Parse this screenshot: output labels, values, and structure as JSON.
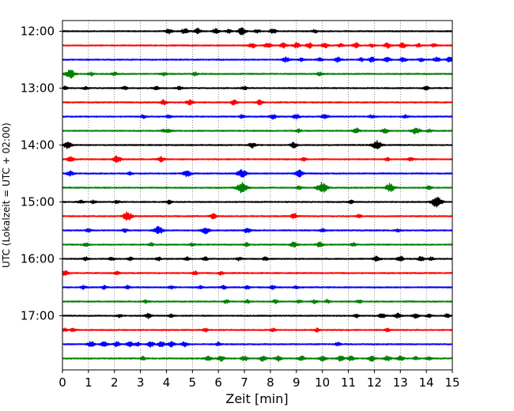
{
  "chart_data": {
    "type": "line",
    "title": "",
    "xlabel": "Zeit  [min]",
    "ylabel": "UTC (Lokalzeit = UTC + 02:00)",
    "xlim": [
      0,
      15
    ],
    "x_ticks": [
      "0",
      "1",
      "2",
      "3",
      "4",
      "5",
      "6",
      "7",
      "8",
      "9",
      "10",
      "11",
      "12",
      "13",
      "14",
      "15"
    ],
    "y_tick_labels": [
      "12:00",
      "13:00",
      "14:00",
      "15:00",
      "16:00",
      "17:00"
    ],
    "grid": "vertical-dotted",
    "colors": [
      "#000000",
      "#ff0000",
      "#0000ff",
      "#008000"
    ],
    "series": [
      {
        "time": "12:00",
        "color": "#000000",
        "events": [
          [
            4.1,
            3
          ],
          [
            4.7,
            3
          ],
          [
            5.2,
            3
          ],
          [
            5.9,
            3
          ],
          [
            6.4,
            2
          ],
          [
            6.9,
            4
          ],
          [
            7.5,
            2
          ],
          [
            8.1,
            3
          ],
          [
            9.7,
            2
          ]
        ]
      },
      {
        "time": "12:15",
        "color": "#ff0000",
        "events": [
          [
            7.3,
            3
          ],
          [
            7.9,
            3
          ],
          [
            8.5,
            3
          ],
          [
            9.0,
            3
          ],
          [
            9.5,
            3
          ],
          [
            10.1,
            3
          ],
          [
            10.7,
            2
          ],
          [
            11.3,
            3
          ],
          [
            11.9,
            2
          ],
          [
            12.5,
            3
          ],
          [
            13.1,
            3
          ],
          [
            13.7,
            2
          ],
          [
            14.3,
            2
          ]
        ]
      },
      {
        "time": "12:30",
        "color": "#0000ff",
        "events": [
          [
            8.6,
            3
          ],
          [
            9.2,
            2
          ],
          [
            9.9,
            2
          ],
          [
            10.6,
            3
          ],
          [
            11.5,
            2
          ],
          [
            11.9,
            3
          ],
          [
            12.5,
            3
          ],
          [
            13.1,
            3
          ],
          [
            13.8,
            2
          ],
          [
            14.4,
            3
          ],
          [
            14.9,
            3
          ]
        ]
      },
      {
        "time": "12:45",
        "color": "#008000",
        "events": [
          [
            0.3,
            5
          ],
          [
            1.1,
            2
          ],
          [
            2.0,
            2
          ],
          [
            3.9,
            2
          ],
          [
            5.1,
            2
          ],
          [
            9.9,
            2
          ]
        ]
      },
      {
        "time": "13:00",
        "color": "#000000",
        "events": [
          [
            0.1,
            2
          ],
          [
            0.9,
            2
          ],
          [
            2.4,
            2
          ],
          [
            3.6,
            2
          ],
          [
            4.5,
            2
          ],
          [
            7.0,
            2
          ],
          [
            14.0,
            2
          ]
        ]
      },
      {
        "time": "13:15",
        "color": "#ff0000",
        "events": [
          [
            3.9,
            3
          ],
          [
            4.9,
            3
          ],
          [
            6.6,
            3
          ],
          [
            7.6,
            3
          ]
        ]
      },
      {
        "time": "13:30",
        "color": "#0000ff",
        "events": [
          [
            3.1,
            2
          ],
          [
            4.1,
            2
          ],
          [
            6.9,
            2
          ],
          [
            8.1,
            3
          ],
          [
            9.0,
            3
          ],
          [
            10.1,
            3
          ],
          [
            11.9,
            2
          ],
          [
            13.2,
            2
          ]
        ]
      },
      {
        "time": "13:45",
        "color": "#008000",
        "events": [
          [
            3.9,
            2
          ],
          [
            4.1,
            2
          ],
          [
            9.1,
            2
          ],
          [
            11.3,
            3
          ],
          [
            12.4,
            3
          ],
          [
            13.6,
            4
          ],
          [
            14.1,
            2
          ]
        ]
      },
      {
        "time": "14:00",
        "color": "#000000",
        "events": [
          [
            0.2,
            4
          ],
          [
            7.3,
            3
          ],
          [
            8.9,
            3
          ],
          [
            12.1,
            5
          ]
        ]
      },
      {
        "time": "14:15",
        "color": "#ff0000",
        "events": [
          [
            0.3,
            3
          ],
          [
            2.1,
            4
          ],
          [
            3.8,
            3
          ],
          [
            9.3,
            2
          ],
          [
            12.5,
            2
          ],
          [
            13.4,
            2
          ]
        ]
      },
      {
        "time": "14:30",
        "color": "#0000ff",
        "events": [
          [
            0.3,
            3
          ],
          [
            2.6,
            2
          ],
          [
            4.8,
            4
          ],
          [
            6.9,
            5
          ],
          [
            9.1,
            4
          ]
        ]
      },
      {
        "time": "14:45",
        "color": "#008000",
        "events": [
          [
            6.9,
            6
          ],
          [
            9.1,
            2
          ],
          [
            10.0,
            6
          ],
          [
            12.6,
            5
          ],
          [
            14.1,
            2
          ]
        ]
      },
      {
        "time": "15:00",
        "color": "#000000",
        "events": [
          [
            0.7,
            2
          ],
          [
            1.2,
            2
          ],
          [
            2.1,
            2
          ],
          [
            4.1,
            2
          ],
          [
            11.1,
            2
          ],
          [
            14.4,
            6
          ]
        ]
      },
      {
        "time": "15:15",
        "color": "#ff0000",
        "events": [
          [
            2.5,
            5
          ],
          [
            5.8,
            3
          ],
          [
            8.9,
            3
          ],
          [
            11.4,
            2
          ]
        ]
      },
      {
        "time": "15:30",
        "color": "#0000ff",
        "events": [
          [
            1.0,
            2
          ],
          [
            2.4,
            2
          ],
          [
            3.7,
            5
          ],
          [
            5.5,
            4
          ],
          [
            7.1,
            3
          ],
          [
            10.0,
            2
          ],
          [
            12.9,
            2
          ]
        ]
      },
      {
        "time": "15:45",
        "color": "#008000",
        "events": [
          [
            0.9,
            2
          ],
          [
            3.4,
            2
          ],
          [
            5.0,
            2
          ],
          [
            7.1,
            2
          ],
          [
            8.9,
            3
          ],
          [
            9.9,
            3
          ],
          [
            11.2,
            2
          ]
        ]
      },
      {
        "time": "16:00",
        "color": "#000000",
        "events": [
          [
            0.9,
            2
          ],
          [
            1.9,
            2
          ],
          [
            2.6,
            2
          ],
          [
            3.7,
            2
          ],
          [
            4.8,
            2
          ],
          [
            5.5,
            2
          ],
          [
            6.8,
            2
          ],
          [
            7.8,
            2
          ],
          [
            12.1,
            3
          ],
          [
            13.0,
            3
          ],
          [
            13.8,
            3
          ],
          [
            14.2,
            2
          ]
        ]
      },
      {
        "time": "16:15",
        "color": "#ff0000",
        "events": [
          [
            0.1,
            3
          ],
          [
            2.1,
            2
          ],
          [
            5.1,
            2
          ],
          [
            6.1,
            2
          ]
        ]
      },
      {
        "time": "16:30",
        "color": "#0000ff",
        "events": [
          [
            0.8,
            2
          ],
          [
            1.6,
            2
          ],
          [
            2.5,
            2
          ],
          [
            4.2,
            2
          ],
          [
            5.3,
            2
          ],
          [
            6.2,
            2
          ],
          [
            7.1,
            2
          ],
          [
            8.1,
            2
          ],
          [
            9.0,
            2
          ]
        ]
      },
      {
        "time": "16:45",
        "color": "#008000",
        "events": [
          [
            3.2,
            2
          ],
          [
            6.3,
            2
          ],
          [
            7.1,
            2
          ],
          [
            8.2,
            2
          ],
          [
            9.1,
            2
          ],
          [
            9.7,
            2
          ],
          [
            10.2,
            2
          ],
          [
            11.4,
            2
          ]
        ]
      },
      {
        "time": "17:00",
        "color": "#000000",
        "events": [
          [
            2.2,
            2
          ],
          [
            3.3,
            3
          ],
          [
            4.2,
            2
          ],
          [
            11.3,
            2
          ],
          [
            12.3,
            3
          ],
          [
            12.9,
            3
          ],
          [
            13.6,
            3
          ],
          [
            14.1,
            2
          ],
          [
            14.8,
            2
          ]
        ]
      },
      {
        "time": "17:15",
        "color": "#ff0000",
        "events": [
          [
            0.1,
            2
          ],
          [
            0.4,
            2
          ],
          [
            5.5,
            2
          ],
          [
            8.1,
            2
          ],
          [
            9.8,
            2
          ],
          [
            12.5,
            2
          ]
        ]
      },
      {
        "time": "17:30",
        "color": "#0000ff",
        "events": [
          [
            1.1,
            3
          ],
          [
            1.6,
            3
          ],
          [
            2.1,
            3
          ],
          [
            2.6,
            3
          ],
          [
            2.9,
            2
          ],
          [
            3.4,
            3
          ],
          [
            3.8,
            3
          ],
          [
            4.2,
            3
          ],
          [
            4.7,
            3
          ],
          [
            6.0,
            2
          ],
          [
            10.6,
            2
          ]
        ]
      },
      {
        "time": "17:45",
        "color": "#008000",
        "events": [
          [
            3.1,
            2
          ],
          [
            5.6,
            3
          ],
          [
            6.1,
            3
          ],
          [
            7.0,
            3
          ],
          [
            7.7,
            3
          ],
          [
            8.3,
            3
          ],
          [
            9.2,
            3
          ],
          [
            10.0,
            3
          ],
          [
            10.7,
            3
          ],
          [
            11.1,
            3
          ],
          [
            11.9,
            3
          ],
          [
            12.5,
            3
          ],
          [
            13.0,
            3
          ],
          [
            13.6,
            2
          ],
          [
            14.1,
            2
          ]
        ]
      }
    ]
  }
}
